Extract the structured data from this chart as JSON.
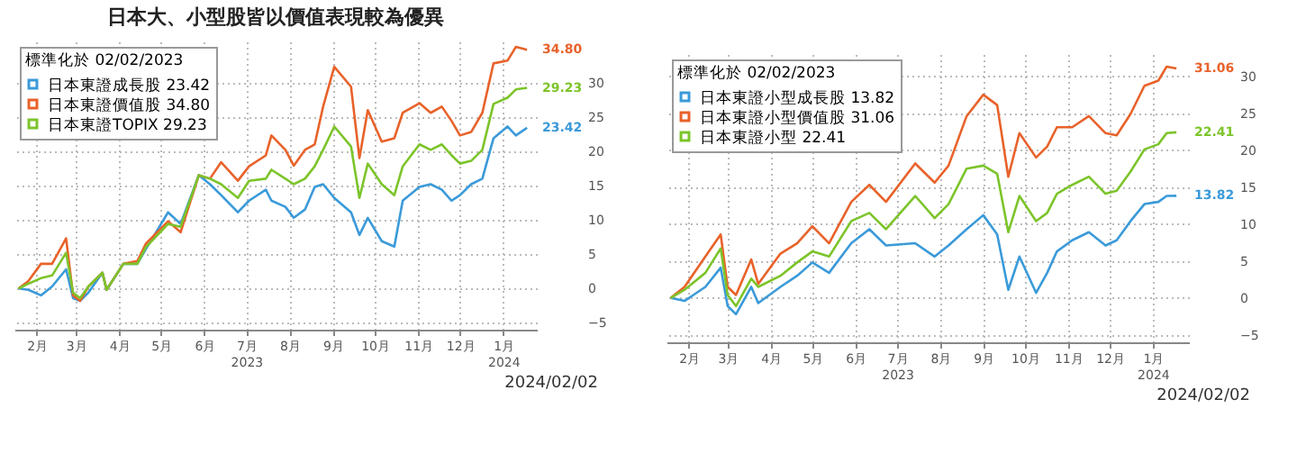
{
  "chart_data": [
    {
      "type": "line",
      "title": "日本大、小型股皆以價值表現較為優異",
      "legend_title": "標準化於 02/02/2023",
      "legend": "top left",
      "grid": true,
      "annotations": [
        "2024/02/02"
      ],
      "xlim": [
        "2023-01-30",
        "2024-02-08"
      ],
      "xticks": [
        {
          "value": "2023-02-15",
          "label": "2月"
        },
        {
          "value": "2023-03-15",
          "label": "3月"
        },
        {
          "value": "2023-04-15",
          "label": "4月"
        },
        {
          "value": "2023-05-15",
          "label": "5月"
        },
        {
          "value": "2023-06-15",
          "label": "6月"
        },
        {
          "value": "2023-07-15",
          "label": "7月\n2023"
        },
        {
          "value": "2023-08-15",
          "label": "8月"
        },
        {
          "value": "2023-09-15",
          "label": "9月"
        },
        {
          "value": "2023-10-15",
          "label": "10月"
        },
        {
          "value": "2023-11-15",
          "label": "11月"
        },
        {
          "value": "2023-12-15",
          "label": "12月"
        },
        {
          "value": "2024-01-15",
          "label": "1月\n2024"
        }
      ],
      "ylim": [
        -6,
        36
      ],
      "yticks": [
        -5,
        0,
        5,
        10,
        15,
        20,
        25,
        30
      ],
      "x": [
        "2023-02-02",
        "2023-02-09",
        "2023-02-18",
        "2023-02-26",
        "2023-03-08",
        "2023-03-13",
        "2023-03-18",
        "2023-03-24",
        "2023-04-03",
        "2023-04-06",
        "2023-04-18",
        "2023-04-28",
        "2023-05-04",
        "2023-05-20",
        "2023-05-29",
        "2023-06-11",
        "2023-06-19",
        "2023-06-27",
        "2023-07-09",
        "2023-07-17",
        "2023-07-29",
        "2023-08-02",
        "2023-08-12",
        "2023-08-18",
        "2023-08-26",
        "2023-09-02",
        "2023-09-08",
        "2023-09-16",
        "2023-09-28",
        "2023-10-04",
        "2023-10-10",
        "2023-10-20",
        "2023-10-29",
        "2023-11-04",
        "2023-11-16",
        "2023-11-24",
        "2023-12-02",
        "2023-12-09",
        "2023-12-15",
        "2023-12-23",
        "2023-12-31",
        "2024-01-08",
        "2024-01-18",
        "2024-01-24",
        "2024-02-01"
      ],
      "series": [
        {
          "name": "日本東證成長股 23.42",
          "color": "#3a9ad9",
          "values": [
            0,
            -0.2,
            -1,
            0.3,
            2.8,
            -1.4,
            -1.8,
            -0.6,
            2.3,
            -0.2,
            3.6,
            3.6,
            5.7,
            11.1,
            9.4,
            16.5,
            15.2,
            13.6,
            11.1,
            12.8,
            14.4,
            12.8,
            11.9,
            10.3,
            11.5,
            14.8,
            15.2,
            13.2,
            11.1,
            7.8,
            10.3,
            6.9,
            6.1,
            12.8,
            14.8,
            15.2,
            14.4,
            12.8,
            13.6,
            15.2,
            16,
            21.9,
            23.6,
            22.3,
            23.42
          ],
          "value_labels": [
            null,
            null,
            null,
            null,
            null,
            null,
            null,
            null,
            null,
            null,
            null,
            null,
            null,
            null,
            null,
            null,
            null,
            null,
            null,
            null,
            null,
            null,
            null,
            null,
            null,
            null,
            null,
            null,
            null,
            null,
            null,
            null,
            null,
            null,
            null,
            null,
            null,
            null,
            null,
            null,
            null,
            null,
            null,
            null,
            "23.42"
          ]
        },
        {
          "name": "日本東證價值股 34.80",
          "color": "#e8622a",
          "values": [
            0,
            1.1,
            3.6,
            3.6,
            7.3,
            -1,
            -1.8,
            0.3,
            2.3,
            -0.2,
            3.6,
            4,
            6.5,
            9.8,
            8.2,
            16.5,
            16,
            18.4,
            15.7,
            17.8,
            19.4,
            22.3,
            20.2,
            17.9,
            20.2,
            21,
            26.5,
            32.3,
            29.4,
            19,
            26,
            21.4,
            21.9,
            25.6,
            27,
            25.6,
            26.5,
            24.4,
            22.3,
            22.8,
            25.6,
            32.8,
            33.2,
            35.2,
            34.8
          ],
          "value_labels": [
            null,
            null,
            null,
            null,
            null,
            null,
            null,
            null,
            null,
            null,
            null,
            null,
            null,
            null,
            null,
            null,
            null,
            null,
            null,
            null,
            null,
            null,
            null,
            null,
            null,
            null,
            null,
            null,
            null,
            null,
            null,
            null,
            null,
            null,
            null,
            null,
            null,
            null,
            null,
            null,
            null,
            null,
            null,
            null,
            "34.80"
          ]
        },
        {
          "name": "日本東證TOPIX 29.23",
          "color": "#7cc42a",
          "values": [
            0,
            0.7,
            1.5,
            1.9,
            5.2,
            -0.6,
            -1.4,
            0.3,
            2.3,
            -0.2,
            3.6,
            3.6,
            6,
            9.4,
            9,
            16.5,
            16,
            15.2,
            13.2,
            15.7,
            16,
            17.3,
            16,
            15.2,
            16,
            17.8,
            20.2,
            23.6,
            20.7,
            13.2,
            18.2,
            15.2,
            13.6,
            17.8,
            21,
            20.2,
            21,
            19.4,
            18.2,
            18.6,
            20.2,
            26.9,
            27.8,
            29,
            29.23
          ],
          "value_labels": [
            null,
            null,
            null,
            null,
            null,
            null,
            null,
            null,
            null,
            null,
            null,
            null,
            null,
            null,
            null,
            null,
            null,
            null,
            null,
            null,
            null,
            null,
            null,
            null,
            null,
            null,
            null,
            null,
            null,
            null,
            null,
            null,
            null,
            null,
            null,
            null,
            null,
            null,
            null,
            null,
            null,
            null,
            null,
            null,
            "29.23"
          ]
        }
      ]
    },
    {
      "type": "line",
      "legend_title": "標準化於 02/02/2023",
      "legend": "top left",
      "grid": true,
      "annotations": [
        "2024/02/02"
      ],
      "xlim": [
        "2023-01-30",
        "2024-02-10"
      ],
      "xticks": [
        {
          "value": "2023-02-15",
          "label": "2月"
        },
        {
          "value": "2023-03-15",
          "label": "3月"
        },
        {
          "value": "2023-04-15",
          "label": "4月"
        },
        {
          "value": "2023-05-15",
          "label": "5月"
        },
        {
          "value": "2023-06-15",
          "label": "6月"
        },
        {
          "value": "2023-07-15",
          "label": "7月\n2023"
        },
        {
          "value": "2023-08-15",
          "label": "8月"
        },
        {
          "value": "2023-09-15",
          "label": "9月"
        },
        {
          "value": "2023-10-15",
          "label": "10月"
        },
        {
          "value": "2023-11-15",
          "label": "11月"
        },
        {
          "value": "2023-12-15",
          "label": "12月"
        },
        {
          "value": "2024-01-15",
          "label": "1月\n2024"
        }
      ],
      "ylim": [
        -6,
        33
      ],
      "yticks": [
        -5,
        0,
        5,
        10,
        15,
        20,
        25,
        30
      ],
      "x": [
        "2023-02-02",
        "2023-02-12",
        "2023-02-27",
        "2023-03-10",
        "2023-03-15",
        "2023-03-21",
        "2023-04-01",
        "2023-04-06",
        "2023-04-22",
        "2023-05-04",
        "2023-05-15",
        "2023-05-27",
        "2023-06-12",
        "2023-06-25",
        "2023-07-07",
        "2023-07-28",
        "2023-08-11",
        "2023-08-21",
        "2023-09-03",
        "2023-09-15",
        "2023-09-25",
        "2023-10-03",
        "2023-10-11",
        "2023-10-23",
        "2023-10-31",
        "2023-11-07",
        "2023-11-18",
        "2023-11-30",
        "2023-12-12",
        "2023-12-20",
        "2023-12-30",
        "2024-01-09",
        "2024-01-19",
        "2024-01-25",
        "2024-02-01"
      ],
      "series": [
        {
          "name": "日本東證小型成長股 13.82",
          "color": "#3a9ad9",
          "values": [
            0,
            -0.4,
            1.5,
            4.1,
            -1.1,
            -2.2,
            1.5,
            -0.7,
            1.5,
            3,
            4.8,
            3.4,
            7.4,
            9.3,
            7.1,
            7.4,
            5.6,
            7.1,
            9.3,
            11.2,
            8.6,
            1.1,
            5.6,
            0.7,
            3.4,
            6.3,
            7.8,
            8.9,
            7.1,
            7.8,
            10.4,
            12.7,
            13,
            13.8,
            13.82
          ],
          "value_labels": [
            null,
            null,
            null,
            null,
            null,
            null,
            null,
            null,
            null,
            null,
            null,
            null,
            null,
            null,
            null,
            null,
            null,
            null,
            null,
            null,
            null,
            null,
            null,
            null,
            null,
            null,
            null,
            null,
            null,
            null,
            null,
            null,
            null,
            null,
            "13.82"
          ]
        },
        {
          "name": "日本東證小型價值股 31.06",
          "color": "#e8622a",
          "values": [
            0,
            1.5,
            5.6,
            8.6,
            1.5,
            0.4,
            5.2,
            1.9,
            6,
            7.4,
            9.7,
            7.4,
            13,
            15.3,
            13,
            18.2,
            15.6,
            17.9,
            24.6,
            27.5,
            26.1,
            16.4,
            22.3,
            19,
            20.5,
            23.1,
            23.1,
            24.6,
            22.3,
            22,
            24.9,
            28.7,
            29.4,
            31.3,
            31.06
          ],
          "value_labels": [
            null,
            null,
            null,
            null,
            null,
            null,
            null,
            null,
            null,
            null,
            null,
            null,
            null,
            null,
            null,
            null,
            null,
            null,
            null,
            null,
            null,
            null,
            null,
            null,
            null,
            null,
            null,
            null,
            null,
            null,
            null,
            null,
            null,
            null,
            "31.06"
          ]
        },
        {
          "name": "日本東證小型 22.41",
          "color": "#7cc42a",
          "values": [
            0,
            1.1,
            3.4,
            6.7,
            0.4,
            -1.1,
            2.6,
            1.5,
            3,
            4.8,
            6.3,
            5.6,
            10.4,
            11.5,
            9.3,
            13.8,
            10.8,
            12.7,
            17.5,
            17.9,
            16.8,
            8.9,
            13.8,
            10.4,
            11.5,
            14.1,
            15.3,
            16.4,
            14.1,
            14.5,
            17.1,
            20.1,
            20.8,
            22.3,
            22.41
          ],
          "value_labels": [
            null,
            null,
            null,
            null,
            null,
            null,
            null,
            null,
            null,
            null,
            null,
            null,
            null,
            null,
            null,
            null,
            null,
            null,
            null,
            null,
            null,
            null,
            null,
            null,
            null,
            null,
            null,
            null,
            null,
            null,
            null,
            null,
            null,
            null,
            "22.41"
          ]
        }
      ]
    }
  ]
}
